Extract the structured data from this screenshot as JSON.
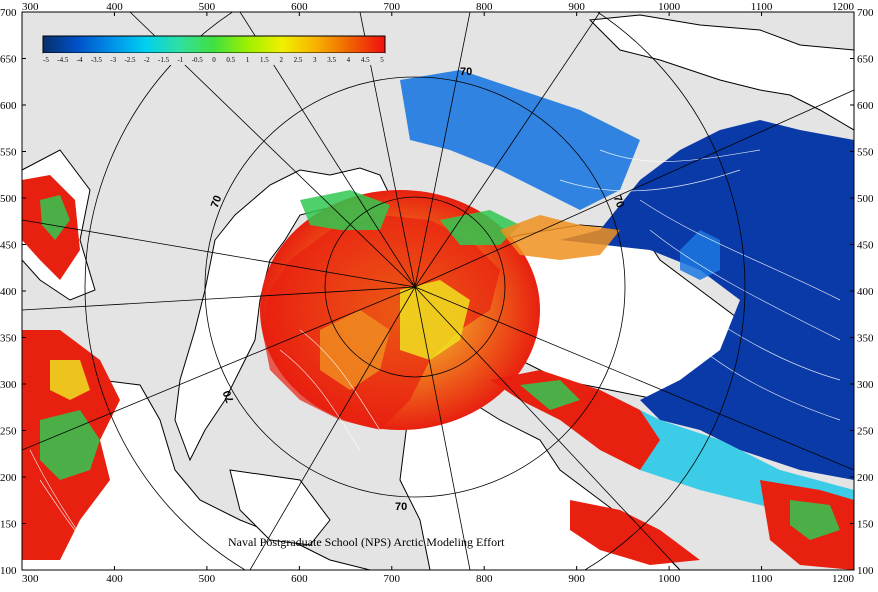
{
  "x_ticks": [
    "300",
    "400",
    "500",
    "600",
    "700",
    "800",
    "900",
    "1000",
    "1100",
    "1200"
  ],
  "y_ticks": [
    "700",
    "650",
    "600",
    "550",
    "500",
    "450",
    "400",
    "350",
    "300",
    "250",
    "200",
    "150",
    "100"
  ],
  "colorbar": {
    "labels": [
      "-5",
      "-4.5",
      "-4",
      "-3.5",
      "-3",
      "-2.5",
      "-2",
      "-1.5",
      "-1",
      "-0.5",
      "0",
      "0.5",
      "1",
      "1.5",
      "2",
      "2.5",
      "3",
      "3.5",
      "4",
      "4.5",
      "5"
    ],
    "colors": [
      "#08306b",
      "#0050c8",
      "#0090e8",
      "#00d0f0",
      "#30e0a0",
      "#40e040",
      "#a0f000",
      "#f0f000",
      "#f8b000",
      "#f06000",
      "#f01010"
    ]
  },
  "latitude_labels": [
    "70",
    "70",
    "70",
    "70",
    "70"
  ],
  "credit": "Naval Postgraduate School (NPS) Arctic Modeling Effort",
  "colors": {
    "background": "#e4e4e4",
    "land": "#ffffff",
    "deep_blue": "#0a3aa8",
    "blue": "#1c78e0",
    "cyan": "#20c8e8",
    "green": "#30c850",
    "yellow": "#f0e020",
    "orange": "#f09020",
    "red": "#e82010"
  }
}
